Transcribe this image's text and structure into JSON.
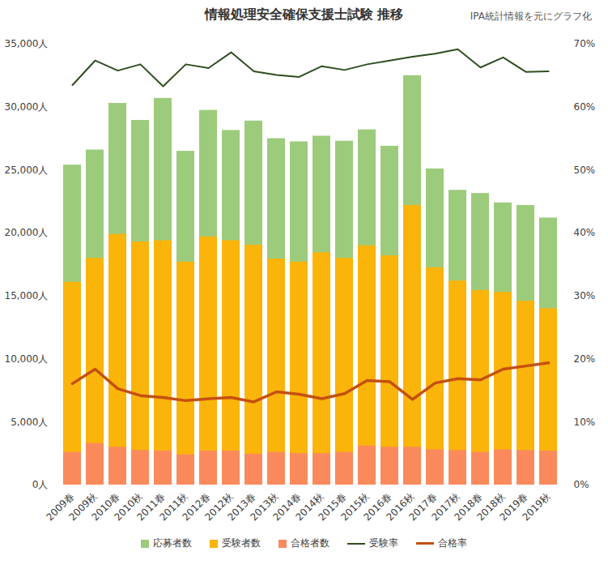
{
  "chart_data": {
    "type": "bar",
    "title": "情報処理安全確保支援士試験 推移",
    "annotations": [
      "IPA統計情報を元にグラフ化"
    ],
    "categories": [
      "2009春",
      "2009秋",
      "2010春",
      "2010秋",
      "2011春",
      "2011秋",
      "2012春",
      "2012秋",
      "2013春",
      "2013秋",
      "2014春",
      "2014秋",
      "2015春",
      "2015秋",
      "2016春",
      "2016秋",
      "2017春",
      "2017秋",
      "2018春",
      "2018秋",
      "2019春",
      "2019秋"
    ],
    "series": [
      {
        "name": "応募者数",
        "type": "bar",
        "color": "#9ccb7c",
        "values": [
          25400,
          26600,
          30300,
          28950,
          30700,
          26500,
          29750,
          28150,
          28900,
          27500,
          27250,
          27700,
          27300,
          28200,
          26900,
          32500,
          25100,
          23400,
          23150,
          22400,
          22200,
          21200
        ]
      },
      {
        "name": "受験者数",
        "type": "bar",
        "color": "#fbb40a",
        "values": [
          16100,
          18000,
          19900,
          19300,
          19400,
          17700,
          19700,
          19400,
          19050,
          17950,
          17700,
          18450,
          18000,
          19000,
          18200,
          22200,
          17250,
          16200,
          15450,
          15300,
          14600,
          14000
        ]
      },
      {
        "name": "合格者数",
        "type": "bar",
        "color": "#fa8a5c",
        "values": [
          2600,
          3300,
          3000,
          2750,
          2700,
          2400,
          2700,
          2700,
          2450,
          2600,
          2500,
          2500,
          2600,
          3100,
          3000,
          3000,
          2800,
          2750,
          2600,
          2800,
          2750,
          2700
        ]
      },
      {
        "name": "受験率",
        "type": "line",
        "axis": "y2",
        "color": "#2f4d1f",
        "values": [
          63.5,
          67.4,
          65.8,
          66.8,
          63.3,
          66.8,
          66.2,
          68.7,
          65.7,
          65.1,
          64.8,
          66.5,
          65.9,
          66.8,
          67.4,
          68.0,
          68.5,
          69.2,
          66.3,
          67.9,
          65.6,
          65.7
        ]
      },
      {
        "name": "合格率",
        "type": "line",
        "axis": "y2",
        "color": "#c4500f",
        "values": [
          16.1,
          18.4,
          15.3,
          14.2,
          13.9,
          13.4,
          13.7,
          13.9,
          13.2,
          14.8,
          14.4,
          13.7,
          14.5,
          16.6,
          16.4,
          13.6,
          16.2,
          16.9,
          16.7,
          18.4,
          18.9,
          19.4
        ]
      }
    ],
    "ylim": [
      0,
      35000
    ],
    "yticks": [
      {
        "value": 0,
        "label": "0人"
      },
      {
        "value": 5000,
        "label": "5,000人"
      },
      {
        "value": 10000,
        "label": "10,000人"
      },
      {
        "value": 15000,
        "label": "15,000人"
      },
      {
        "value": 20000,
        "label": "20,000人"
      },
      {
        "value": 25000,
        "label": "25,000人"
      },
      {
        "value": 30000,
        "label": "30,000人"
      },
      {
        "value": 35000,
        "label": "35,000人"
      }
    ],
    "y2lim": [
      0,
      70
    ],
    "y2ticks": [
      {
        "value": 0,
        "label": "0%"
      },
      {
        "value": 10,
        "label": "10%"
      },
      {
        "value": 20,
        "label": "20%"
      },
      {
        "value": 30,
        "label": "30%"
      },
      {
        "value": 40,
        "label": "40%"
      },
      {
        "value": 50,
        "label": "50%"
      },
      {
        "value": 60,
        "label": "60%"
      },
      {
        "value": 70,
        "label": "70%"
      }
    ],
    "stacked": false,
    "grid": false,
    "legend": "bottom"
  }
}
